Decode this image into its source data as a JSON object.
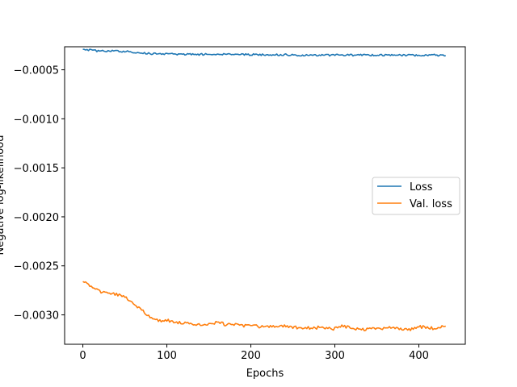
{
  "chart_data": {
    "type": "line",
    "title": "",
    "xlabel": "Epochs",
    "ylabel": "Negative log-likelihood",
    "xlim": [
      -21.7,
      455.3
    ],
    "ylim": [
      -0.0033,
      -0.000265
    ],
    "xticks": [
      0,
      100,
      200,
      300,
      400
    ],
    "xtick_labels": [
      "0",
      "100",
      "200",
      "300",
      "400"
    ],
    "yticks": [
      -0.0005,
      -0.001,
      -0.0015,
      -0.002,
      -0.0025,
      -0.003
    ],
    "ytick_labels": [
      "−0.0005",
      "−0.0010",
      "−0.0015",
      "−0.0020",
      "−0.0025",
      "−0.0030"
    ],
    "grid": false,
    "legend_position": "center-right",
    "series": [
      {
        "name": "Loss",
        "color": "#1f77b4",
        "points": [
          [
            0,
            -0.00029
          ],
          [
            10,
            -0.0003
          ],
          [
            20,
            -0.00031
          ],
          [
            30,
            -0.000308
          ],
          [
            40,
            -0.00031
          ],
          [
            50,
            -0.000312
          ],
          [
            60,
            -0.00032
          ],
          [
            70,
            -0.00033
          ],
          [
            80,
            -0.000335
          ],
          [
            100,
            -0.00034
          ],
          [
            120,
            -0.000342
          ],
          [
            140,
            -0.000343
          ],
          [
            160,
            -0.00034
          ],
          [
            180,
            -0.000345
          ],
          [
            200,
            -0.000345
          ],
          [
            220,
            -0.000345
          ],
          [
            240,
            -0.000346
          ],
          [
            260,
            -0.00035
          ],
          [
            280,
            -0.00035
          ],
          [
            300,
            -0.00035
          ],
          [
            320,
            -0.00035
          ],
          [
            340,
            -0.00035
          ],
          [
            360,
            -0.00035
          ],
          [
            380,
            -0.00035
          ],
          [
            400,
            -0.000355
          ],
          [
            420,
            -0.00035
          ],
          [
            432,
            -0.000355
          ]
        ]
      },
      {
        "name": "Val. loss",
        "color": "#ff7f0e",
        "points": [
          [
            0,
            -0.00266
          ],
          [
            10,
            -0.00271
          ],
          [
            20,
            -0.00276
          ],
          [
            30,
            -0.00278
          ],
          [
            40,
            -0.00279
          ],
          [
            50,
            -0.00282
          ],
          [
            60,
            -0.00288
          ],
          [
            70,
            -0.00295
          ],
          [
            80,
            -0.00303
          ],
          [
            90,
            -0.00306
          ],
          [
            100,
            -0.00305
          ],
          [
            110,
            -0.00308
          ],
          [
            120,
            -0.00308
          ],
          [
            130,
            -0.00309
          ],
          [
            140,
            -0.003095
          ],
          [
            150,
            -0.0031
          ],
          [
            160,
            -0.00307
          ],
          [
            170,
            -0.0031
          ],
          [
            180,
            -0.0031
          ],
          [
            190,
            -0.00311
          ],
          [
            200,
            -0.00311
          ],
          [
            210,
            -0.00312
          ],
          [
            220,
            -0.00312
          ],
          [
            230,
            -0.00312
          ],
          [
            240,
            -0.003115
          ],
          [
            250,
            -0.003125
          ],
          [
            260,
            -0.00313
          ],
          [
            270,
            -0.003135
          ],
          [
            280,
            -0.00313
          ],
          [
            290,
            -0.00314
          ],
          [
            300,
            -0.00314
          ],
          [
            310,
            -0.00311
          ],
          [
            320,
            -0.00314
          ],
          [
            330,
            -0.00315
          ],
          [
            340,
            -0.00315
          ],
          [
            350,
            -0.00314
          ],
          [
            360,
            -0.00314
          ],
          [
            370,
            -0.00313
          ],
          [
            380,
            -0.00315
          ],
          [
            390,
            -0.00315
          ],
          [
            400,
            -0.00312
          ],
          [
            410,
            -0.00313
          ],
          [
            420,
            -0.00314
          ],
          [
            432,
            -0.003115
          ]
        ]
      }
    ]
  }
}
